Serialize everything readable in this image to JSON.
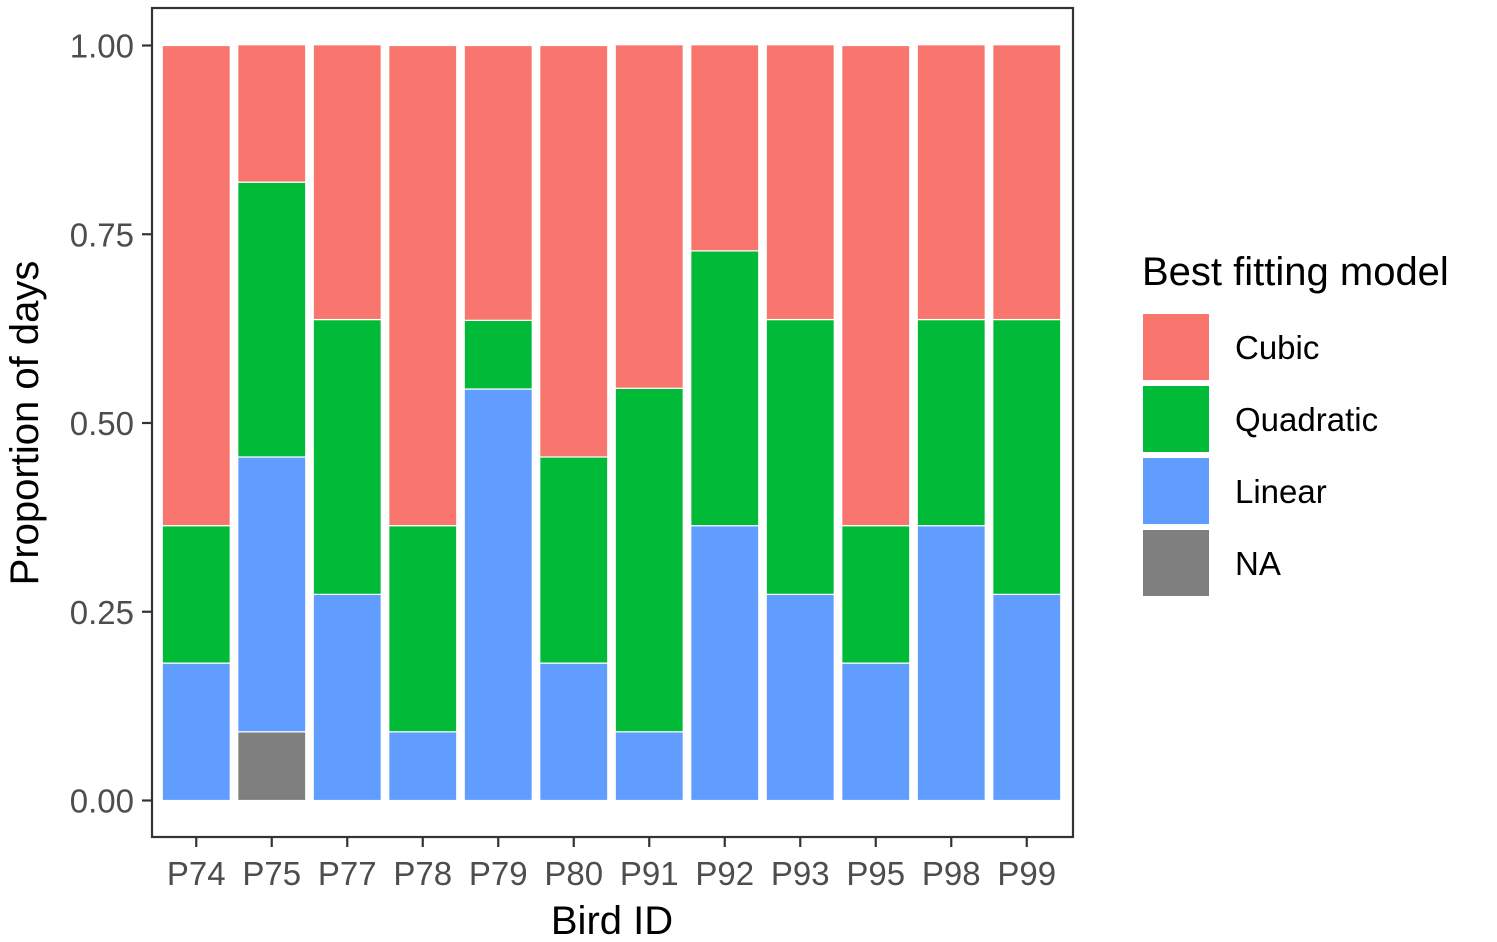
{
  "chart_data": {
    "type": "bar",
    "stacked": true,
    "xlabel": "Bird ID",
    "ylabel": "Proportion of days",
    "ylim": [
      0,
      1
    ],
    "yticks": [
      "0.00",
      "0.25",
      "0.50",
      "0.75",
      "1.00"
    ],
    "categories": [
      "P74",
      "P75",
      "P77",
      "P78",
      "P79",
      "P80",
      "P91",
      "P92",
      "P93",
      "P95",
      "P98",
      "P99"
    ],
    "series": [
      {
        "name": "NA",
        "color": "#7F7F7F",
        "values": [
          0,
          0.091,
          0,
          0,
          0,
          0,
          0,
          0,
          0,
          0,
          0,
          0
        ]
      },
      {
        "name": "Linear",
        "color": "#619CFF",
        "values": [
          0.182,
          0.364,
          0.273,
          0.091,
          0.545,
          0.182,
          0.091,
          0.364,
          0.273,
          0.182,
          0.364,
          0.273
        ]
      },
      {
        "name": "Quadratic",
        "color": "#00BA38",
        "values": [
          0.182,
          0.364,
          0.364,
          0.273,
          0.091,
          0.273,
          0.455,
          0.364,
          0.364,
          0.182,
          0.273,
          0.364
        ]
      },
      {
        "name": "Cubic",
        "color": "#F8766D",
        "values": [
          0.636,
          0.182,
          0.364,
          0.636,
          0.364,
          0.545,
          0.455,
          0.273,
          0.364,
          0.636,
          0.364,
          0.364
        ]
      }
    ],
    "legend": {
      "title": "Best fitting model",
      "position": "right",
      "items": [
        {
          "label": "Cubic",
          "color": "#F8766D"
        },
        {
          "label": "Quadratic",
          "color": "#00BA38"
        },
        {
          "label": "Linear",
          "color": "#619CFF"
        },
        {
          "label": "NA",
          "color": "#7F7F7F"
        }
      ]
    },
    "grid": false
  }
}
